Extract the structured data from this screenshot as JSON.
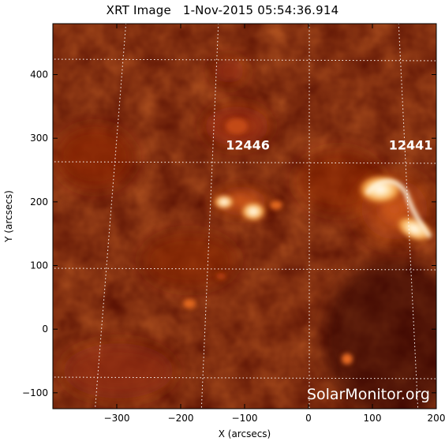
{
  "image": {
    "title": "XRT Image   1-Nov-2015 05:54:36.914",
    "watermark": "SolarMonitor.org",
    "x_axis": {
      "label": "X (arcsecs)",
      "range": [
        -400,
        200
      ],
      "ticks": [
        -300,
        -200,
        -100,
        0,
        100,
        200
      ],
      "tick_labels": [
        "−300",
        "−200",
        "−100",
        "0",
        "100",
        "200"
      ]
    },
    "y_axis": {
      "label": "Y (arcsecs)",
      "range": [
        -125,
        480
      ],
      "ticks": [
        -100,
        0,
        100,
        200,
        300,
        400
      ],
      "tick_labels": [
        "−100",
        "0",
        "100",
        "200",
        "300",
        "400"
      ]
    },
    "regions": [
      {
        "label": "12446",
        "x": -95,
        "y": 282
      },
      {
        "label": "12441",
        "x": 160,
        "y": 282
      }
    ],
    "colors": {
      "background": "#5e1404",
      "dark": "#3a0a02",
      "bright": "#ffd9a0",
      "core": "#ffffff",
      "grid": "#ffffff"
    }
  }
}
